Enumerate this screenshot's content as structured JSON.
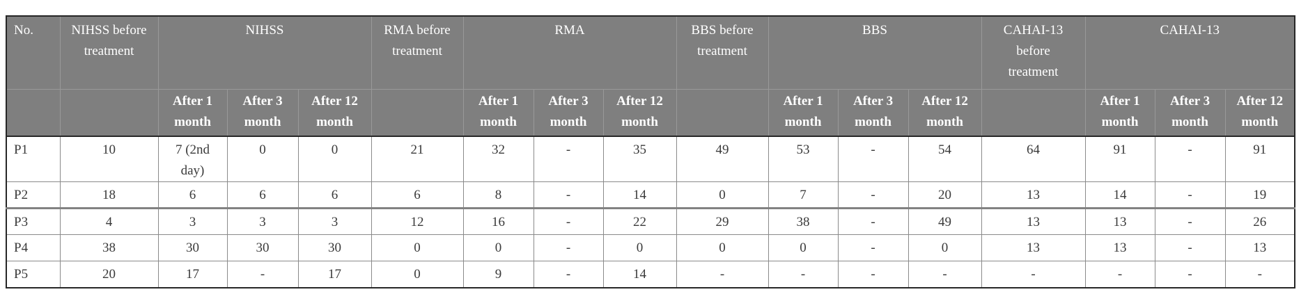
{
  "colors": {
    "header_bg": "#7f7f7f",
    "header_text": "#ffffff",
    "body_text": "#3a3a3a",
    "grid_line": "#8a8a8a",
    "outer_border": "#262626",
    "thick_divider": "#828282"
  },
  "table": {
    "header": {
      "row1": [
        {
          "label": "No.",
          "colspan": 1
        },
        {
          "label": "NIHSS before treatment",
          "colspan": 1
        },
        {
          "label": "NIHSS",
          "colspan": 3
        },
        {
          "label": "RMA before treatment",
          "colspan": 1
        },
        {
          "label": "RMA",
          "colspan": 3
        },
        {
          "label": "BBS before treatment",
          "colspan": 1
        },
        {
          "label": "BBS",
          "colspan": 3
        },
        {
          "label": "CAHAI-13 before treatment",
          "colspan": 1
        },
        {
          "label": "CAHAI-13",
          "colspan": 3
        }
      ],
      "row2": [
        "",
        "",
        "After 1 month",
        "After 3 month",
        "After 12 month",
        "",
        "After 1 month",
        "After 3 month",
        "After 12 month",
        "",
        "After 1 month",
        "After 3 month",
        "After 12 month",
        "",
        "After 1 month",
        "After 3 month",
        "After 12 month"
      ]
    },
    "rows": [
      [
        "P1",
        "10",
        "7 (2nd day)",
        "0",
        "0",
        "21",
        "32",
        "-",
        "35",
        "49",
        "53",
        "-",
        "54",
        "64",
        "91",
        "-",
        "91"
      ],
      [
        "P2",
        "18",
        "6",
        "6",
        "6",
        "6",
        "8",
        "-",
        "14",
        "0",
        "7",
        "-",
        "20",
        "13",
        "14",
        "-",
        "19"
      ],
      [
        "P3",
        "4",
        "3",
        "3",
        "3",
        "12",
        "16",
        "-",
        "22",
        "29",
        "38",
        "-",
        "49",
        "13",
        "13",
        "-",
        "26"
      ],
      [
        "P4",
        "38",
        "30",
        "30",
        "30",
        "0",
        "0",
        "-",
        "0",
        "0",
        "0",
        "-",
        "0",
        "13",
        "13",
        "-",
        "13"
      ],
      [
        "P5",
        "20",
        "17",
        "-",
        "17",
        "0",
        "9",
        "-",
        "14",
        "-",
        "-",
        "-",
        "-",
        "-",
        "-",
        "-",
        "-"
      ]
    ]
  }
}
